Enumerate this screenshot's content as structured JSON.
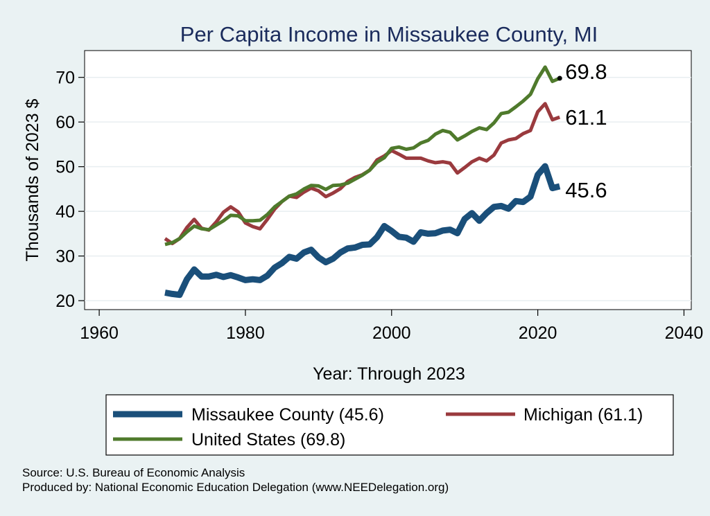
{
  "chart_data": {
    "type": "line",
    "title": "Per Capita Income in Missaukee County, MI",
    "xlabel": "Year: Through 2023",
    "ylabel": "Thousands of 2023 $",
    "xlim": [
      1958,
      2041
    ],
    "ylim": [
      18,
      76
    ],
    "xticks": [
      1960,
      1980,
      2000,
      2020,
      2040
    ],
    "yticks": [
      20,
      30,
      40,
      50,
      60,
      70
    ],
    "grid": true,
    "x": [
      1969,
      1970,
      1971,
      1972,
      1973,
      1974,
      1975,
      1976,
      1977,
      1978,
      1979,
      1980,
      1981,
      1982,
      1983,
      1984,
      1985,
      1986,
      1987,
      1988,
      1989,
      1990,
      1991,
      1992,
      1993,
      1994,
      1995,
      1996,
      1997,
      1998,
      1999,
      2000,
      2001,
      2002,
      2003,
      2004,
      2005,
      2006,
      2007,
      2008,
      2009,
      2010,
      2011,
      2012,
      2013,
      2014,
      2015,
      2016,
      2017,
      2018,
      2019,
      2020,
      2021,
      2022,
      2023
    ],
    "series": [
      {
        "name": "Missaukee County",
        "legend": "Missaukee County (45.6)",
        "color": "#1a4f7a",
        "width": 9,
        "end_label": "45.6",
        "values": [
          21.8,
          21.5,
          21.3,
          24.8,
          27.0,
          25.4,
          25.4,
          25.8,
          25.3,
          25.7,
          25.2,
          24.6,
          24.8,
          24.6,
          25.6,
          27.4,
          28.4,
          29.8,
          29.4,
          30.8,
          31.4,
          29.7,
          28.6,
          29.4,
          30.8,
          31.7,
          31.9,
          32.5,
          32.6,
          34.2,
          36.7,
          35.6,
          34.3,
          34.1,
          33.2,
          35.3,
          35.0,
          35.1,
          35.7,
          35.9,
          35.1,
          38.3,
          39.6,
          37.9,
          39.6,
          41.0,
          41.2,
          40.6,
          42.3,
          42.1,
          43.3,
          48.2,
          50.1,
          45.2,
          45.6
        ]
      },
      {
        "name": "Michigan",
        "legend": "Michigan (61.1)",
        "color": "#9a3a3e",
        "width": 5,
        "end_label": "61.1",
        "values": [
          33.9,
          32.8,
          33.9,
          36.4,
          38.2,
          36.2,
          35.8,
          37.6,
          39.8,
          41.0,
          39.9,
          37.4,
          36.6,
          36.1,
          38.2,
          40.5,
          42.2,
          43.4,
          43.1,
          44.3,
          45.2,
          44.6,
          43.3,
          44.1,
          45.1,
          46.7,
          47.6,
          48.2,
          49.2,
          51.5,
          52.4,
          53.6,
          52.8,
          51.9,
          51.9,
          51.9,
          51.3,
          50.9,
          51.1,
          50.8,
          48.6,
          49.8,
          51.1,
          51.9,
          51.3,
          52.6,
          55.3,
          56.0,
          56.3,
          57.4,
          58.1,
          62.3,
          64.1,
          60.5,
          61.1
        ]
      },
      {
        "name": "United States",
        "legend": "United States (69.8)",
        "color": "#4f7a2c",
        "width": 5,
        "end_label": "69.8",
        "values": [
          32.6,
          33.0,
          33.9,
          35.4,
          36.7,
          36.1,
          35.9,
          36.9,
          37.9,
          39.1,
          39.0,
          37.9,
          37.9,
          38.0,
          39.3,
          41.0,
          42.2,
          43.4,
          43.9,
          45.0,
          45.8,
          45.7,
          44.9,
          45.8,
          45.9,
          46.3,
          47.2,
          48.1,
          49.2,
          51.0,
          52.0,
          54.1,
          54.4,
          53.9,
          54.2,
          55.3,
          55.9,
          57.3,
          58.1,
          57.7,
          56.0,
          56.9,
          57.9,
          58.7,
          58.3,
          59.8,
          61.9,
          62.2,
          63.4,
          64.7,
          66.2,
          69.7,
          72.3,
          69.1,
          69.8
        ]
      }
    ]
  },
  "source": {
    "line1": "Source: U.S. Bureau of Economic Analysis",
    "line2": "Produced by: National Economic Education Delegation (www.NEEDelegation.org)"
  }
}
